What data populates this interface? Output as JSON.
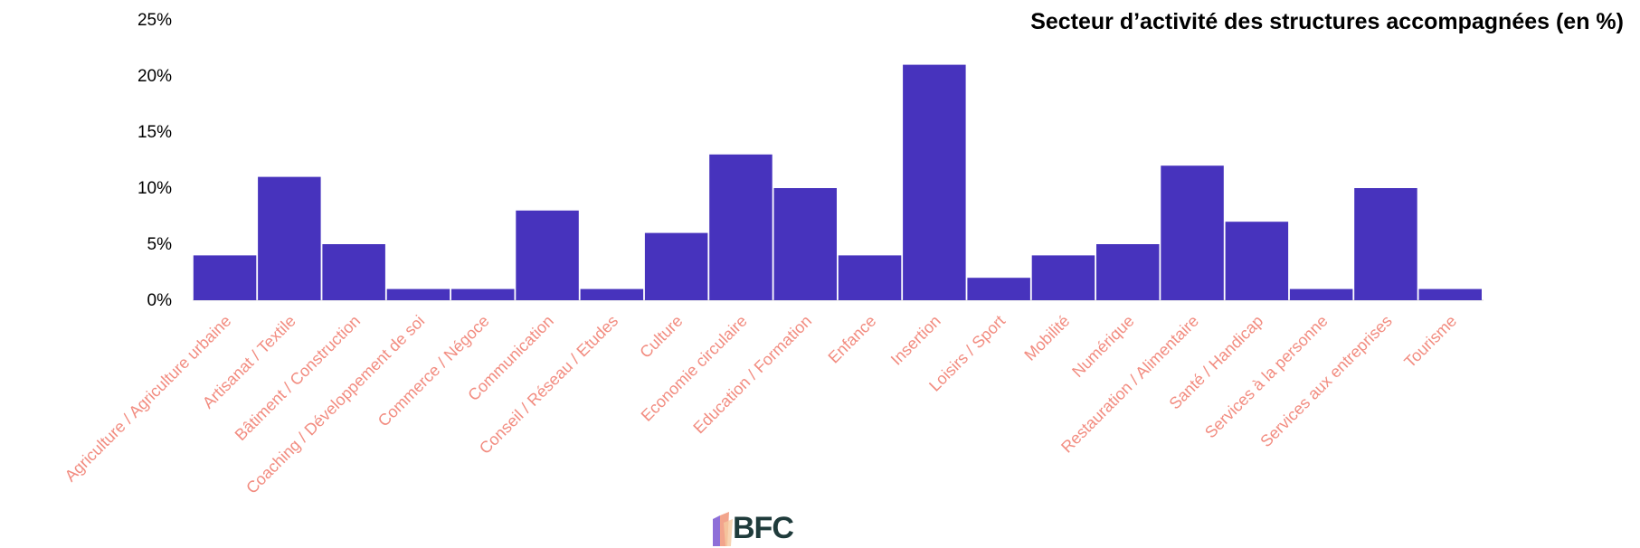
{
  "chart_data": {
    "type": "bar",
    "title": "Secteur d’activité des structures accompagnées (en %)",
    "xlabel": "",
    "ylabel": "",
    "ylim": [
      0,
      25
    ],
    "yticks": [
      "0%",
      "5%",
      "10%",
      "15%",
      "20%",
      "25%"
    ],
    "ytick_values": [
      0,
      5,
      10,
      15,
      20,
      25
    ],
    "grid": false,
    "legend": "none",
    "categories": [
      "Agriculture / Agriculture urbaine",
      "Artisanat / Textile",
      "Bâtiment / Construction",
      "Coaching / Développement de soi",
      "Commerce / Négoce",
      "Communication",
      "Conseil / Réseau / Etudes",
      "Culture",
      "Economie circulaire",
      "Education / Formation",
      "Enfance",
      "Insertion",
      "Loisirs / Sport",
      "Mobilité",
      "Numérique",
      "Restauration / Alimentaire",
      "Santé / Handicap",
      "Services à la personne",
      "Services aux entreprises",
      "Tourisme"
    ],
    "values": [
      4,
      11,
      5,
      1,
      1,
      8,
      1,
      6,
      13,
      10,
      4,
      21,
      2,
      4,
      5,
      12,
      7,
      1,
      10,
      1
    ]
  },
  "colors": {
    "bar": "#4733BD",
    "category_label": "#F28C80",
    "tick_label": "#000000",
    "title": "#000000",
    "logo_text": "#1F3B3B"
  },
  "logo": {
    "text": "BFC"
  }
}
